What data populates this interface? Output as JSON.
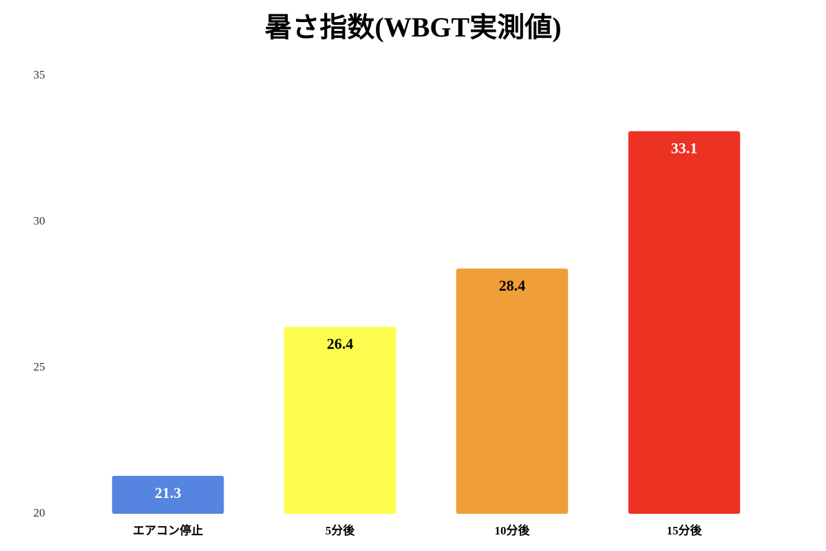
{
  "chart_data": {
    "type": "bar",
    "title": "暑さ指数(WBGT実測値)",
    "categories": [
      "エアコン停止",
      "5分後",
      "10分後",
      "15分後"
    ],
    "values": [
      21.3,
      26.4,
      28.4,
      33.1
    ],
    "colors": [
      "#5585e0",
      "#fdfd4f",
      "#f09e38",
      "#eb3223"
    ],
    "ylim": [
      20,
      35
    ],
    "yticks": [
      20,
      25,
      30,
      35
    ],
    "grid": false
  }
}
